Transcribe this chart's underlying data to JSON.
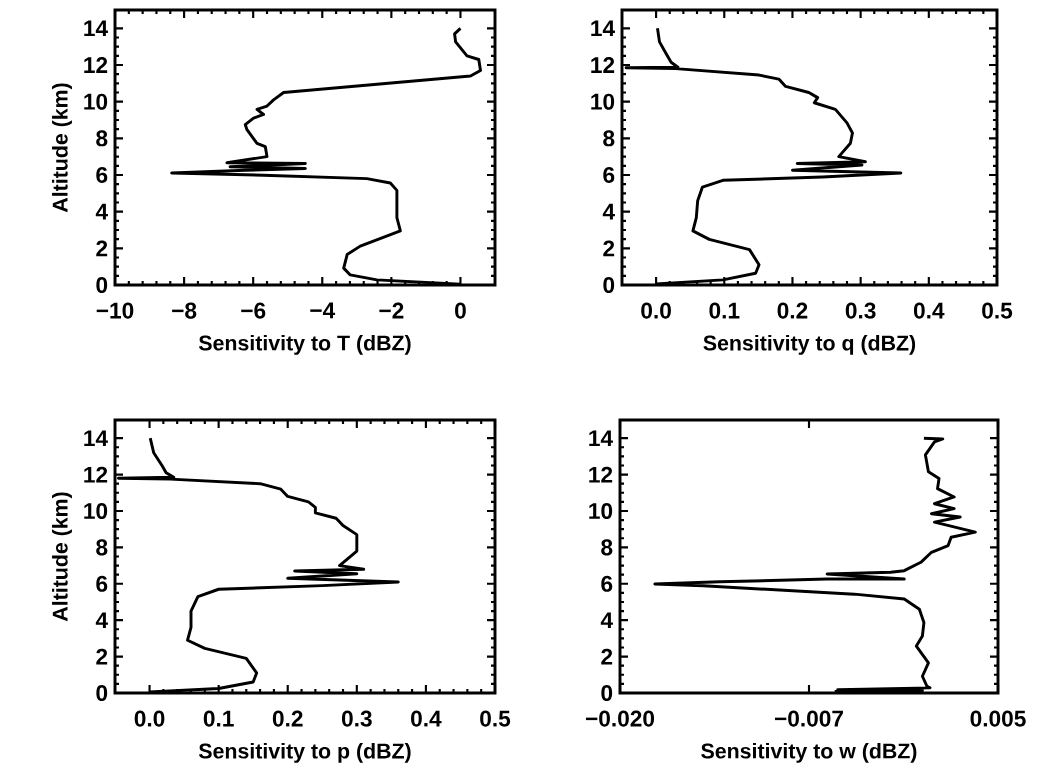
{
  "chart_data": [
    {
      "type": "line",
      "xlabel": "Sensitivity to T (dBZ)",
      "ylabel": "Altitude (km)",
      "xlim": [
        -10,
        1
      ],
      "ylim": [
        0,
        15
      ],
      "xticks": [
        {
          "value": -10,
          "label": "−10"
        },
        {
          "value": -8,
          "label": "−8"
        },
        {
          "value": -6,
          "label": "−6"
        },
        {
          "value": -4,
          "label": "−4"
        },
        {
          "value": -2,
          "label": "−2"
        },
        0
      ],
      "yticks": [
        0,
        2,
        4,
        6,
        8,
        10,
        12,
        14
      ],
      "grid": false,
      "marker": "none",
      "line_style": "solid",
      "series": [
        {
          "color": "#000000",
          "values": [
            14,
            13.7,
            13.26,
            12.5,
            12.3,
            11.7,
            11.4,
            10.5,
            10.1,
            9.76,
            9.58,
            9.3,
            9.1,
            8.75,
            8.47,
            7.73,
            7.55,
            7.0,
            6.67,
            6.63,
            6.45,
            6.35,
            6.26,
            6.11,
            5.99,
            5.8,
            5.56,
            5.16,
            3.68,
            2.95,
            2.12,
            1.66,
            0.92,
            0.55,
            0.28,
            0.04
          ],
          "x": [
            0,
            -0.17,
            -0.14,
            0.19,
            0.53,
            0.58,
            0.29,
            -5.12,
            -5.41,
            -5.6,
            -5.89,
            -5.7,
            -5.99,
            -6.23,
            -6.18,
            -5.89,
            -5.65,
            -5.6,
            -6.76,
            -4.49,
            -6.67,
            -4.49,
            -6.23,
            -8.36,
            -5.7,
            -2.71,
            -2.03,
            -1.84,
            -1.84,
            -1.74,
            -2.9,
            -3.28,
            -3.38,
            -3.19,
            -2.42,
            0
          ]
        }
      ]
    },
    {
      "type": "line",
      "xlabel": "Sensitivity to q (dBZ)",
      "xlim": [
        -0.05,
        0.5
      ],
      "ylim": [
        0,
        15
      ],
      "xticks": [
        {
          "value": 0,
          "label": "0.0"
        },
        0.1,
        0.2,
        0.3,
        0.4,
        0.5
      ],
      "yticks": [
        0,
        2,
        4,
        6,
        8,
        10,
        12,
        14
      ],
      "grid": false,
      "marker": "none",
      "line_style": "solid",
      "series": [
        {
          "color": "#000000",
          "values": [
            14,
            13.26,
            12.6,
            12.15,
            11.88,
            11.85,
            11.8,
            11.45,
            11.23,
            10.83,
            10.5,
            10.22,
            9.94,
            9.58,
            8.84,
            8.29,
            7.73,
            7.0,
            6.72,
            6.63,
            6.54,
            6.26,
            6.11,
            5.89,
            5.71,
            5.34,
            4.6,
            3.68,
            2.95,
            2.49,
            1.93,
            1.1,
            0.64,
            0.28,
            0.05
          ],
          "x": [
            0.002,
            0.005,
            0.015,
            0.022,
            0.032,
            -0.044,
            0.029,
            0.151,
            0.18,
            0.19,
            0.224,
            0.237,
            0.232,
            0.263,
            0.28,
            0.288,
            0.285,
            0.268,
            0.307,
            0.207,
            0.302,
            0.2,
            0.359,
            0.244,
            0.098,
            0.068,
            0.061,
            0.059,
            0.054,
            0.078,
            0.137,
            0.151,
            0.146,
            0.098,
            0
          ]
        }
      ]
    },
    {
      "type": "line",
      "xlabel": "Sensitivity to p (dBZ)",
      "ylabel": "Altitude (km)",
      "xlim": [
        -0.05,
        0.5
      ],
      "ylim": [
        0,
        15
      ],
      "xticks": [
        {
          "value": 0,
          "label": "0.0"
        },
        0.1,
        0.2,
        0.3,
        0.4,
        0.5
      ],
      "yticks": [
        0,
        2,
        4,
        6,
        8,
        10,
        12,
        14
      ],
      "grid": false,
      "marker": "none",
      "line_style": "solid",
      "series": [
        {
          "color": "#000000",
          "values": [
            14,
            13.2,
            12.5,
            12.1,
            11.85,
            11.8,
            11.75,
            11.5,
            11.2,
            10.8,
            10.5,
            10.2,
            9.9,
            9.6,
            9.2,
            8.7,
            7.8,
            7.0,
            6.8,
            6.7,
            6.55,
            6.3,
            6.1,
            5.9,
            5.7,
            5.3,
            4.5,
            3.6,
            2.9,
            2.45,
            1.9,
            1.1,
            0.6,
            0.25,
            0.05
          ],
          "x": [
            0.001,
            0.006,
            0.018,
            0.024,
            0.035,
            -0.045,
            0.03,
            0.16,
            0.19,
            0.2,
            0.23,
            0.24,
            0.24,
            0.27,
            0.28,
            0.3,
            0.3,
            0.275,
            0.31,
            0.21,
            0.3,
            0.2,
            0.36,
            0.25,
            0.1,
            0.07,
            0.06,
            0.06,
            0.055,
            0.08,
            0.14,
            0.155,
            0.15,
            0.1,
            0
          ]
        }
      ]
    },
    {
      "type": "line",
      "xlabel": "Sensitivity to w (dBZ)",
      "xlim": [
        -0.02,
        0.005
      ],
      "ylim": [
        0,
        15
      ],
      "xticks": [
        {
          "value": -0.02,
          "label": "−0.020"
        },
        {
          "value": -0.0075,
          "label": "−0.007"
        },
        0.005
      ],
      "yticks": [
        0,
        2,
        4,
        6,
        8,
        10,
        12,
        14
      ],
      "grid": false,
      "marker": "none",
      "line_style": "solid",
      "series": [
        {
          "color": "#000000",
          "values": [
            14,
            13.96,
            13.8,
            13.08,
            12.15,
            11.79,
            11.23,
            10.77,
            10.4,
            10.13,
            9.85,
            9.67,
            9.39,
            8.84,
            8.56,
            8.1,
            7.73,
            7.18,
            6.72,
            6.63,
            6.54,
            6.26,
            6.26,
            6.11,
            5.99,
            5.89,
            5.43,
            5.16,
            4.6,
            3.87,
            3.13,
            2.58,
            1.66,
            0.92,
            0.37,
            0.28,
            0.18,
            0.13,
            0.09
          ],
          "x": [
            0.0001,
            0.00135,
            0.0008,
            0.0002,
            0.0004,
            0.0011,
            0.001,
            0.0021,
            0.0008,
            0.0021,
            0.0006,
            0.0025,
            0.0008,
            0.0035,
            0.0019,
            0.0017,
            0.0006,
            -0.0001,
            -0.0012,
            -0.0021,
            -0.0063,
            -0.0012,
            -0.0063,
            -0.0134,
            -0.0177,
            -0.0145,
            -0.0045,
            -0.0012,
            -0.0002,
            0.0001,
            0.0,
            -0.0004,
            0.0004,
            0.0,
            0.0003,
            0.0005,
            -0.0056,
            0.0,
            -0.0058
          ]
        }
      ]
    }
  ]
}
